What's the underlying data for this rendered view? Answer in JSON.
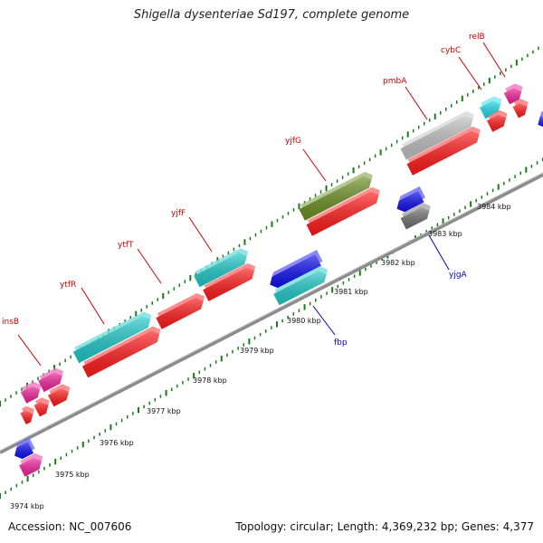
{
  "title": "Shigella dysenteriae Sd197, complete genome",
  "accession_text": "Accession: NC_007606",
  "summary_text": "Topology: circular; Length: 4,369,232 bp; Genes: 4,377",
  "colors": {
    "backbone": "#8c8c8c",
    "tick": "#1a7a1a",
    "label_top": "#cc0000",
    "label_bottom": "#0000cc"
  },
  "tick_labels": [
    "3974 kbp",
    "3975 kbp",
    "3976 kbp",
    "3977 kbp",
    "3978 kbp",
    "3979 kbp",
    "3980 kbp",
    "3981 kbp",
    "3982 kbp",
    "3983 kbp",
    "3984 kbp"
  ],
  "gene_labels_top": [
    "insB",
    "ytfR",
    "ytfT",
    "yjfF",
    "yjfG",
    "pmbA",
    "cybC",
    "relB"
  ],
  "gene_labels_bottom": [
    "fbp",
    "yjgA"
  ]
}
